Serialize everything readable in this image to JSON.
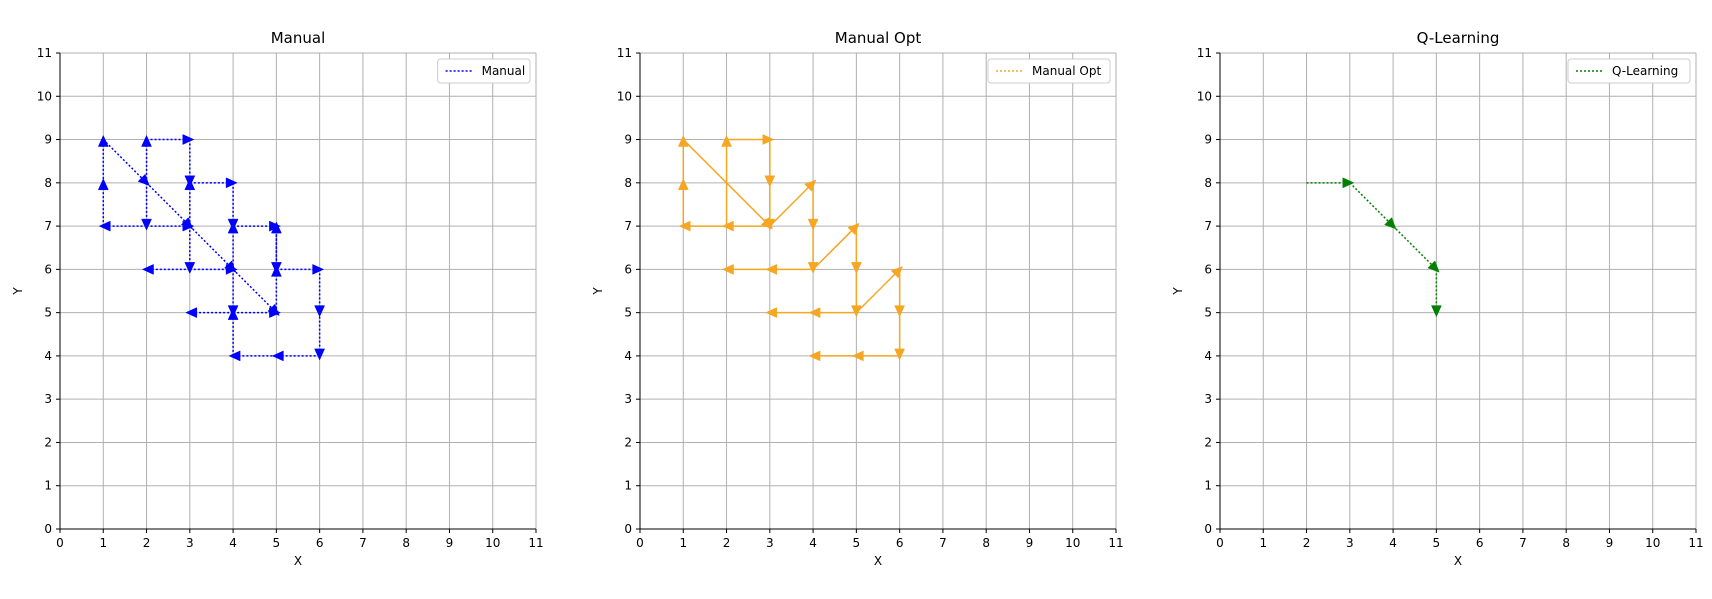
{
  "chart_data": [
    {
      "type": "line",
      "title": "Manual",
      "xlabel": "X",
      "ylabel": "Y",
      "xlim": [
        0,
        11
      ],
      "ylim": [
        0,
        11
      ],
      "xticks": [
        "0",
        "1",
        "2",
        "3",
        "4",
        "5",
        "6",
        "7",
        "8",
        "9",
        "10",
        "11"
      ],
      "yticks": [
        "0",
        "1",
        "2",
        "3",
        "4",
        "5",
        "6",
        "7",
        "8",
        "9",
        "10",
        "11"
      ],
      "grid": true,
      "legend": "top-right",
      "color": "#0000ff",
      "dash": "2,2",
      "series": [
        {
          "name": "Manual",
          "segments": [
            [
              1,
              7,
              1,
              8
            ],
            [
              1,
              8,
              1,
              9
            ],
            [
              1,
              9,
              2,
              8
            ],
            [
              2,
              8,
              2,
              9
            ],
            [
              2,
              9,
              3,
              9
            ],
            [
              2,
              8,
              2,
              7
            ],
            [
              2,
              7,
              1,
              7
            ],
            [
              2,
              7,
              3,
              7
            ],
            [
              3,
              7,
              3,
              8
            ],
            [
              3,
              8,
              4,
              8
            ],
            [
              3,
              7,
              3,
              6
            ],
            [
              3,
              6,
              2,
              6
            ],
            [
              3,
              6,
              4,
              6
            ],
            [
              4,
              6,
              4,
              7
            ],
            [
              4,
              7,
              5,
              7
            ],
            [
              3,
              7,
              4,
              6
            ],
            [
              4,
              6,
              5,
              5
            ],
            [
              4,
              6,
              4,
              5
            ],
            [
              4,
              5,
              3,
              5
            ],
            [
              4,
              5,
              5,
              5
            ],
            [
              5,
              5,
              5,
              6
            ],
            [
              5,
              6,
              6,
              6
            ],
            [
              5,
              6,
              5,
              7
            ],
            [
              6,
              6,
              6,
              5
            ],
            [
              6,
              5,
              6,
              4
            ],
            [
              6,
              4,
              5,
              4
            ],
            [
              5,
              4,
              4,
              4
            ],
            [
              4,
              4,
              4,
              5
            ],
            [
              4,
              8,
              4,
              7
            ],
            [
              3,
              9,
              3,
              8
            ],
            [
              2,
              8,
              3,
              7
            ],
            [
              5,
              7,
              5,
              6
            ]
          ]
        }
      ]
    },
    {
      "type": "line",
      "title": "Manual Opt",
      "xlabel": "X",
      "ylabel": "Y",
      "xlim": [
        0,
        11
      ],
      "ylim": [
        0,
        11
      ],
      "xticks": [
        "0",
        "1",
        "2",
        "3",
        "4",
        "5",
        "6",
        "7",
        "8",
        "9",
        "10",
        "11"
      ],
      "yticks": [
        "0",
        "1",
        "2",
        "3",
        "4",
        "5",
        "6",
        "7",
        "8",
        "9",
        "10",
        "11"
      ],
      "grid": true,
      "legend": "top-right",
      "color": "#f5a623",
      "dash": "",
      "series": [
        {
          "name": "Manual Opt",
          "segments": [
            [
              1,
              7,
              1,
              8
            ],
            [
              1,
              8,
              1,
              9
            ],
            [
              1,
              9,
              3,
              7
            ],
            [
              3,
              7,
              2,
              7
            ],
            [
              2,
              7,
              1,
              7
            ],
            [
              2,
              7,
              2,
              9
            ],
            [
              2,
              9,
              3,
              9
            ],
            [
              3,
              9,
              3,
              8
            ],
            [
              3,
              8,
              3,
              7
            ],
            [
              3,
              7,
              4,
              8
            ],
            [
              4,
              8,
              4,
              7
            ],
            [
              4,
              7,
              4,
              6
            ],
            [
              4,
              6,
              3,
              6
            ],
            [
              3,
              6,
              2,
              6
            ],
            [
              4,
              6,
              5,
              7
            ],
            [
              5,
              7,
              5,
              6
            ],
            [
              5,
              6,
              5,
              5
            ],
            [
              5,
              5,
              4,
              5
            ],
            [
              4,
              5,
              3,
              5
            ],
            [
              5,
              5,
              6,
              6
            ],
            [
              6,
              6,
              6,
              5
            ],
            [
              6,
              5,
              6,
              4
            ],
            [
              6,
              4,
              5,
              4
            ],
            [
              5,
              4,
              4,
              4
            ]
          ]
        }
      ]
    },
    {
      "type": "line",
      "title": "Q-Learning",
      "xlabel": "X",
      "ylabel": "Y",
      "xlim": [
        0,
        11
      ],
      "ylim": [
        0,
        11
      ],
      "xticks": [
        "0",
        "1",
        "2",
        "3",
        "4",
        "5",
        "6",
        "7",
        "8",
        "9",
        "10",
        "11"
      ],
      "yticks": [
        "0",
        "1",
        "2",
        "3",
        "4",
        "5",
        "6",
        "7",
        "8",
        "9",
        "10",
        "11"
      ],
      "grid": true,
      "legend": "top-right",
      "color": "#008000",
      "dash": "2,2",
      "series": [
        {
          "name": "Q-Learning",
          "segments": [
            [
              2,
              8,
              3,
              8
            ],
            [
              3,
              8,
              4,
              7
            ],
            [
              4,
              7,
              5,
              6
            ],
            [
              5,
              6,
              5,
              5
            ]
          ]
        }
      ]
    }
  ]
}
